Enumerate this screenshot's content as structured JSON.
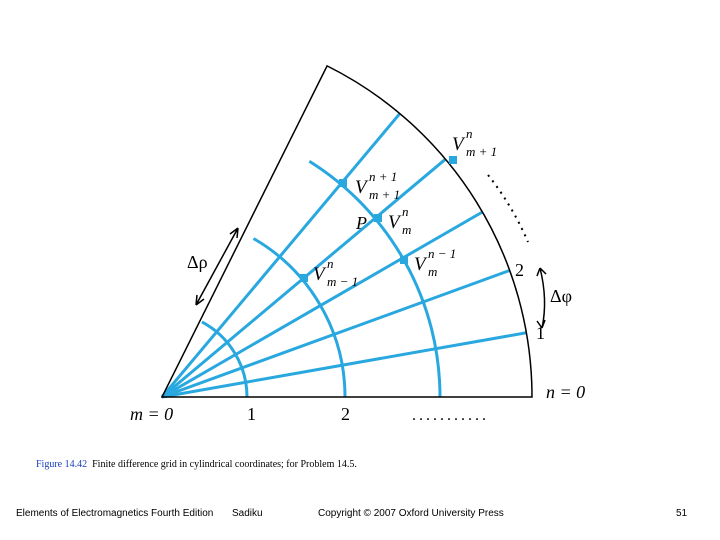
{
  "figure": {
    "labels": {
      "m0": "m = 0",
      "m1": "1",
      "m2": "2",
      "n0": "n = 0",
      "n1": "1",
      "n2": "2",
      "drho": "Δρ",
      "dphi": "Δφ",
      "P": "P"
    },
    "nodes": [
      {
        "symbol": "V",
        "sup": "n",
        "sub": "m + 1"
      },
      {
        "symbol": "V",
        "sup": "n + 1",
        "sub": "m + 1"
      },
      {
        "symbol": "V",
        "sup": "n",
        "sub": "m"
      },
      {
        "symbol": "V",
        "sup": "n − 1",
        "sub": "m"
      },
      {
        "symbol": "V",
        "sup": "n",
        "sub": "m − 1"
      }
    ]
  },
  "caption": {
    "number": "Figure 14.42",
    "text": "Finite difference grid in cylindrical coordinates; for Problem 14.5."
  },
  "footer": {
    "book": "Elements of Electromagnetics Fourth Edition",
    "author": "Sadiku",
    "copyright": "Copyright © 2007 Oxford University Press",
    "page": "51"
  }
}
